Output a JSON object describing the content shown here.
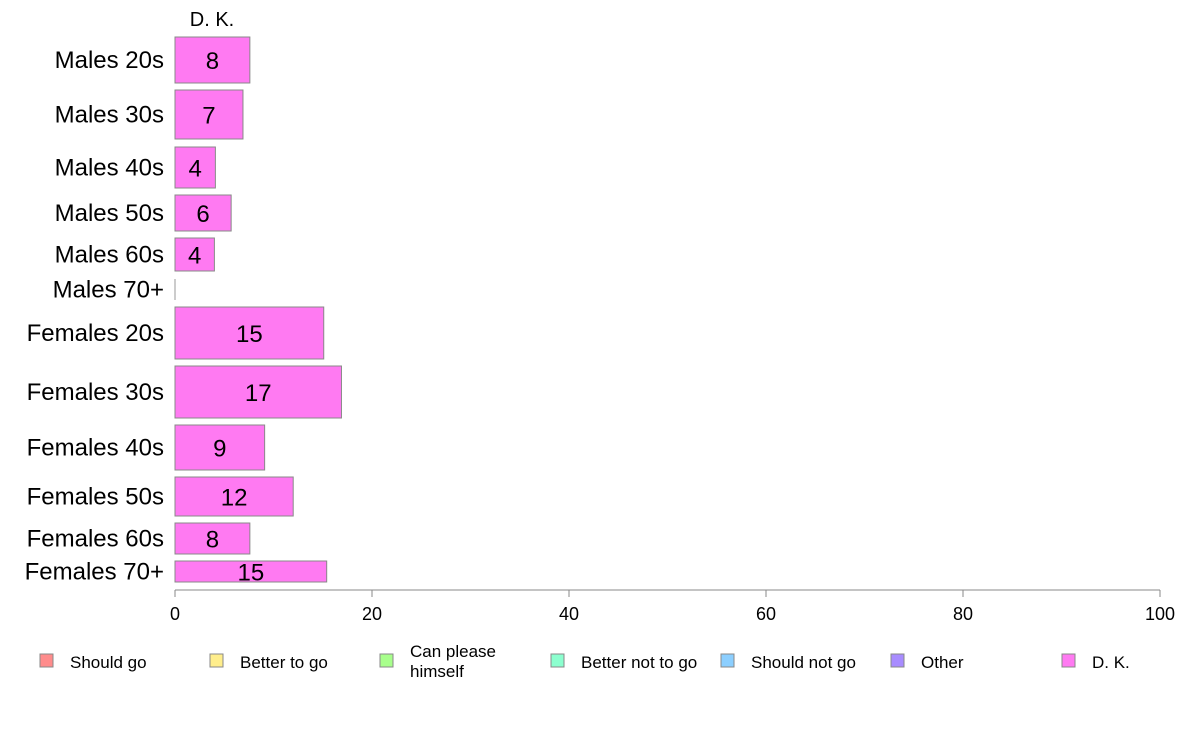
{
  "chart_data": {
    "type": "bar",
    "orientation": "horizontal",
    "stacked": true,
    "column_header": "D. K.",
    "categories": [
      "Males 20s",
      "Males 30s",
      "Males 40s",
      "Males 50s",
      "Males 60s",
      "Males 70+",
      "Females 20s",
      "Females 30s",
      "Females 40s",
      "Females 50s",
      "Females 60s",
      "Females 70+"
    ],
    "series": [
      {
        "name": "Should go",
        "color": "#ff8c8c",
        "values": [
          0,
          0,
          0,
          0,
          0,
          0,
          0,
          0,
          0,
          0,
          0,
          0
        ]
      },
      {
        "name": "Better to go",
        "color": "#ffee8c",
        "values": [
          0,
          0,
          0,
          0,
          0,
          0,
          0,
          0,
          0,
          0,
          0,
          0
        ]
      },
      {
        "name": "Can please himself",
        "color": "#a8ff8c",
        "values": [
          0,
          0,
          0,
          0,
          0,
          0,
          0,
          0,
          0,
          0,
          0,
          0
        ]
      },
      {
        "name": "Better not to go",
        "color": "#8cffcf",
        "values": [
          0,
          0,
          0,
          0,
          0,
          0,
          0,
          0,
          0,
          0,
          0,
          0
        ]
      },
      {
        "name": "Should not go",
        "color": "#8ccfff",
        "values": [
          0,
          0,
          0,
          0,
          0,
          0,
          0,
          0,
          0,
          0,
          0,
          0
        ]
      },
      {
        "name": "Other",
        "color": "#a88cff",
        "values": [
          0,
          0,
          0,
          0,
          0,
          0,
          0,
          0,
          0,
          0,
          0,
          0
        ]
      },
      {
        "name": "D. K.",
        "color": "#ff7af2",
        "values": [
          7.6,
          6.9,
          4.1,
          5.7,
          4.0,
          0,
          15.1,
          16.9,
          9.1,
          12.0,
          7.6,
          15.4
        ]
      }
    ],
    "data_labels": [
      "8",
      "7",
      "4",
      "6",
      "4",
      "",
      "15",
      "17",
      "9",
      "12",
      "8",
      "15"
    ],
    "xlim": [
      0,
      100
    ],
    "xticks": [
      "0",
      "20",
      "40",
      "60",
      "80",
      "100"
    ],
    "grid": false,
    "legend_position": "bottom"
  }
}
